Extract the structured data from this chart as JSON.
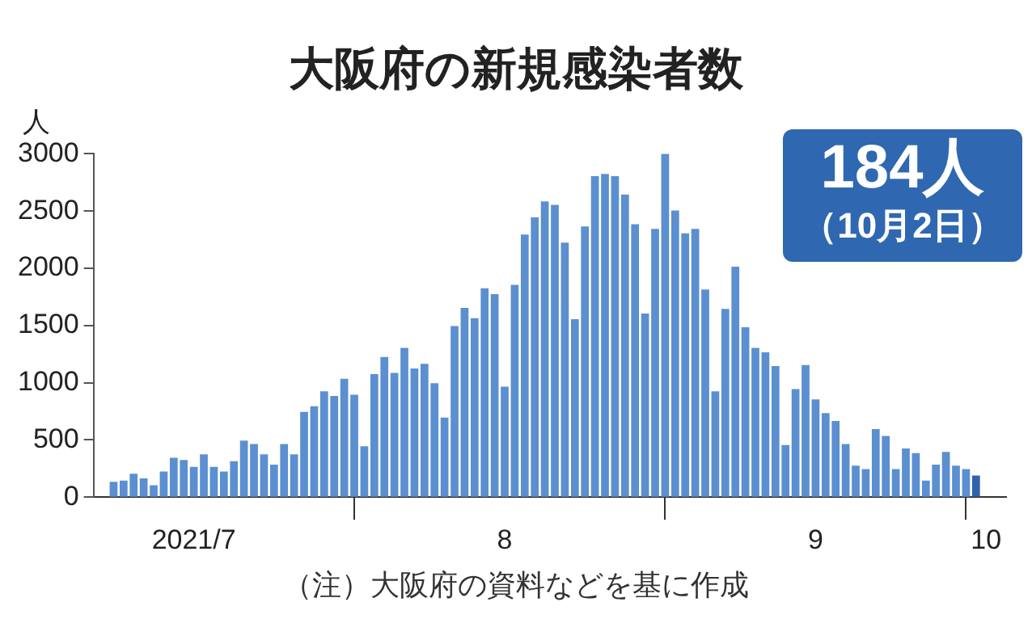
{
  "chart_data": {
    "type": "bar",
    "title": "大阪府の新規感染者数",
    "ylabel": "人",
    "x": [
      "2021-07-08",
      "2021-07-09",
      "2021-07-10",
      "2021-07-11",
      "2021-07-12",
      "2021-07-13",
      "2021-07-14",
      "2021-07-15",
      "2021-07-16",
      "2021-07-17",
      "2021-07-18",
      "2021-07-19",
      "2021-07-20",
      "2021-07-21",
      "2021-07-22",
      "2021-07-23",
      "2021-07-24",
      "2021-07-25",
      "2021-07-26",
      "2021-07-27",
      "2021-07-28",
      "2021-07-29",
      "2021-07-30",
      "2021-07-31",
      "2021-08-01",
      "2021-08-02",
      "2021-08-03",
      "2021-08-04",
      "2021-08-05",
      "2021-08-06",
      "2021-08-07",
      "2021-08-08",
      "2021-08-09",
      "2021-08-10",
      "2021-08-11",
      "2021-08-12",
      "2021-08-13",
      "2021-08-14",
      "2021-08-15",
      "2021-08-16",
      "2021-08-17",
      "2021-08-18",
      "2021-08-19",
      "2021-08-20",
      "2021-08-21",
      "2021-08-22",
      "2021-08-23",
      "2021-08-24",
      "2021-08-25",
      "2021-08-26",
      "2021-08-27",
      "2021-08-28",
      "2021-08-29",
      "2021-08-30",
      "2021-08-31",
      "2021-09-01",
      "2021-09-02",
      "2021-09-03",
      "2021-09-04",
      "2021-09-05",
      "2021-09-06",
      "2021-09-07",
      "2021-09-08",
      "2021-09-09",
      "2021-09-10",
      "2021-09-11",
      "2021-09-12",
      "2021-09-13",
      "2021-09-14",
      "2021-09-15",
      "2021-09-16",
      "2021-09-17",
      "2021-09-18",
      "2021-09-19",
      "2021-09-20",
      "2021-09-21",
      "2021-09-22",
      "2021-09-23",
      "2021-09-24",
      "2021-09-25",
      "2021-09-26",
      "2021-09-27",
      "2021-09-28",
      "2021-09-29",
      "2021-09-30",
      "2021-10-01",
      "2021-10-02"
    ],
    "values": [
      130,
      140,
      200,
      160,
      100,
      220,
      340,
      320,
      260,
      370,
      260,
      220,
      310,
      490,
      460,
      370,
      280,
      460,
      370,
      740,
      790,
      920,
      880,
      1030,
      890,
      440,
      1070,
      1220,
      1080,
      1300,
      1120,
      1160,
      990,
      690,
      1490,
      1650,
      1560,
      1820,
      1770,
      960,
      1850,
      2290,
      2440,
      2580,
      2550,
      2220,
      1550,
      2360,
      2800,
      2820,
      2800,
      2640,
      2380,
      1600,
      2340,
      3000,
      2500,
      2300,
      2340,
      1810,
      920,
      1640,
      2010,
      1480,
      1300,
      1260,
      1140,
      450,
      940,
      1150,
      850,
      730,
      660,
      460,
      270,
      240,
      590,
      530,
      240,
      420,
      380,
      140,
      280,
      390,
      270,
      240,
      184
    ],
    "colors": [
      "#5b8fd0",
      "#5b8fd0",
      "#5b8fd0",
      "#5b8fd0",
      "#5b8fd0",
      "#5b8fd0",
      "#5b8fd0",
      "#5b8fd0",
      "#5b8fd0",
      "#5b8fd0",
      "#5b8fd0",
      "#5b8fd0",
      "#5b8fd0",
      "#5b8fd0",
      "#5b8fd0",
      "#5b8fd0",
      "#5b8fd0",
      "#5b8fd0",
      "#5b8fd0",
      "#5b8fd0",
      "#5b8fd0",
      "#5b8fd0",
      "#5b8fd0",
      "#5b8fd0",
      "#5b8fd0",
      "#5b8fd0",
      "#5b8fd0",
      "#5b8fd0",
      "#5b8fd0",
      "#5b8fd0",
      "#5b8fd0",
      "#5b8fd0",
      "#5b8fd0",
      "#5b8fd0",
      "#5b8fd0",
      "#5b8fd0",
      "#5b8fd0",
      "#5b8fd0",
      "#5b8fd0",
      "#5b8fd0",
      "#5b8fd0",
      "#5b8fd0",
      "#5b8fd0",
      "#5b8fd0",
      "#5b8fd0",
      "#5b8fd0",
      "#5b8fd0",
      "#5b8fd0",
      "#5b8fd0",
      "#5b8fd0",
      "#5b8fd0",
      "#5b8fd0",
      "#5b8fd0",
      "#5b8fd0",
      "#5b8fd0",
      "#5b8fd0",
      "#5b8fd0",
      "#5b8fd0",
      "#5b8fd0",
      "#5b8fd0",
      "#5b8fd0",
      "#5b8fd0",
      "#5b8fd0",
      "#5b8fd0",
      "#5b8fd0",
      "#5b8fd0",
      "#5b8fd0",
      "#5b8fd0",
      "#5b8fd0",
      "#5b8fd0",
      "#5b8fd0",
      "#5b8fd0",
      "#5b8fd0",
      "#5b8fd0",
      "#5b8fd0",
      "#5b8fd0",
      "#5b8fd0",
      "#5b8fd0",
      "#5b8fd0",
      "#5b8fd0",
      "#5b8fd0",
      "#5b8fd0",
      "#5b8fd0",
      "#5b8fd0",
      "#5b8fd0",
      "#5b8fd0",
      "#2f64ad"
    ],
    "xlim": [
      "2021-07-06",
      "2021-10-05"
    ],
    "xticks": [
      {
        "value": "2021-07-16",
        "label": "2021/7"
      },
      {
        "value": "2021-08-01",
        "label": null
      },
      {
        "value": "2021-08-16",
        "label": "8"
      },
      {
        "value": "2021-09-01",
        "label": null
      },
      {
        "value": "2021-09-16",
        "label": "9"
      },
      {
        "value": "2021-10-01",
        "label": null
      },
      {
        "value": "2021-10-03",
        "label": "10"
      }
    ],
    "ylim": [
      0,
      3000
    ],
    "yticks": [
      0,
      500,
      1000,
      1500,
      2000,
      2500,
      3000
    ],
    "legend": false,
    "annotations": [
      "184人",
      "（10月2日）",
      "（注）大阪府の資料などを基に作成"
    ]
  }
}
